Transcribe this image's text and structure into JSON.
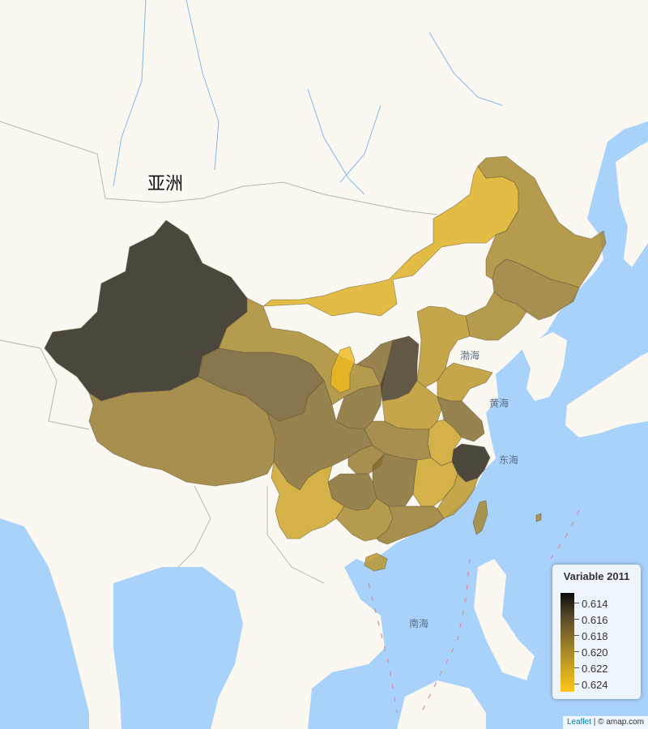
{
  "map": {
    "continent_label": "亚洲",
    "sea_labels": {
      "bohai": "渤海",
      "yellow_sea": "黄海",
      "east_sea": "东海",
      "south_sea": "南海"
    },
    "colors": {
      "water": "#a9d2fb",
      "land": "#fbf8f2",
      "province_border": "#6b5a3b",
      "country_border": "#e0887a"
    },
    "province_shades": {
      "xinjiang": 0.614,
      "tibet": 0.619,
      "qinghai": 0.617,
      "gansu": 0.62,
      "inner_mongolia": 0.623,
      "heilongjiang": 0.62,
      "jilin": 0.619,
      "liaoning": 0.62,
      "ningxia": 0.624,
      "shanxi": 0.615,
      "shaanxi": 0.618,
      "sichuan": 0.618,
      "yunnan": 0.622,
      "guizhou": 0.618,
      "guangxi": 0.62,
      "guangdong": 0.619,
      "hunan": 0.618,
      "jiangxi": 0.622,
      "fujian": 0.621,
      "zhejiang": 0.614,
      "hubei": 0.619,
      "henan": 0.621,
      "anhui": 0.622,
      "jiangsu": 0.618,
      "shandong": 0.621,
      "hebei": 0.621,
      "chongqing": 0.619,
      "hainan": 0.621,
      "taiwan": 0.62
    }
  },
  "legend": {
    "title": "Variable 2011",
    "labels": [
      "0.614",
      "0.616",
      "0.618",
      "0.620",
      "0.622",
      "0.624"
    ],
    "range": [
      0.613,
      0.625
    ],
    "color_min": "#0b0b0b",
    "color_max": "#ffc61a"
  },
  "attribution": {
    "leaflet": "Leaflet",
    "separator": " | © ",
    "provider": "amap.com"
  }
}
